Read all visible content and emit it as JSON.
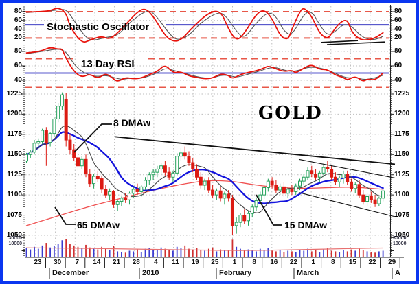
{
  "window": {
    "border_color": "#0a36f0",
    "background": "#ffffff"
  },
  "panels": {
    "stochastic": {
      "title": "Stochastic Oscillator",
      "yticks": [
        "80",
        "60",
        "40",
        "20"
      ],
      "upper_band": 80,
      "lower_band": 20,
      "midline": 50
    },
    "rsi": {
      "title": "13 Day RSI",
      "yticks": [
        "80",
        "60",
        "40"
      ],
      "upper_band": 70,
      "lower_band": 30,
      "midline": 50
    },
    "price": {
      "title": "GOLD",
      "yticks": [
        "1225",
        "1200",
        "1175",
        "1150",
        "1125",
        "1100",
        "1075",
        "1050"
      ],
      "annotations": [
        {
          "label": "8 DMAw"
        },
        {
          "label": "65 DMAw"
        },
        {
          "label": "15 DMAw"
        }
      ]
    },
    "volume": {
      "yticks": [
        "30000",
        "10000"
      ]
    }
  },
  "xaxis": {
    "dates": [
      "23",
      "30",
      "7",
      "14",
      "21",
      "28",
      "4",
      "11",
      "19",
      "25",
      "1",
      "8",
      "16",
      "22",
      "1",
      "8",
      "15",
      "22",
      "29"
    ],
    "months": [
      "December",
      "2010",
      "February",
      "March",
      "A"
    ]
  },
  "colors": {
    "band_dashed": "#e85748",
    "midline_blue": "#2222bb",
    "osc_fast": "#e8130c",
    "osc_slow": "#555555",
    "candle_up": "#23a05a",
    "candle_down": "#dc1a12",
    "ma8": "#444444",
    "ma15": "#1414dd",
    "ma65": "#f05050",
    "vol_up": "#3a3ad0",
    "vol_down": "#d03030",
    "vol_ma": "#e87070",
    "grid": "#bcbcbc",
    "axis": "#222222",
    "trend": "#111111"
  },
  "chart_data": {
    "type": "candlestick+oscillators",
    "price_ylim": [
      1040,
      1233
    ],
    "osc_ylim": [
      0,
      100
    ],
    "volume_ylim": [
      0,
      32000
    ],
    "candles": [
      [
        1142,
        1152,
        1140,
        1150
      ],
      [
        1150,
        1156,
        1146,
        1153
      ],
      [
        1153,
        1168,
        1151,
        1164
      ],
      [
        1164,
        1170,
        1158,
        1166
      ],
      [
        1166,
        1182,
        1163,
        1180
      ],
      [
        1180,
        1184,
        1136,
        1165
      ],
      [
        1165,
        1178,
        1160,
        1176
      ],
      [
        1176,
        1196,
        1172,
        1194
      ],
      [
        1194,
        1214,
        1190,
        1210
      ],
      [
        1210,
        1227,
        1205,
        1224
      ],
      [
        1218,
        1226,
        1160,
        1168
      ],
      [
        1168,
        1176,
        1150,
        1156
      ],
      [
        1156,
        1163,
        1142,
        1146
      ],
      [
        1146,
        1152,
        1130,
        1136
      ],
      [
        1136,
        1148,
        1132,
        1144
      ],
      [
        1144,
        1150,
        1122,
        1126
      ],
      [
        1126,
        1132,
        1110,
        1114
      ],
      [
        1114,
        1126,
        1108,
        1123
      ],
      [
        1123,
        1130,
        1116,
        1120
      ],
      [
        1120,
        1124,
        1102,
        1107
      ],
      [
        1107,
        1112,
        1096,
        1100
      ],
      [
        1100,
        1108,
        1094,
        1104
      ],
      [
        1104,
        1106,
        1084,
        1088
      ],
      [
        1088,
        1094,
        1080,
        1092
      ],
      [
        1092,
        1098,
        1086,
        1096
      ],
      [
        1096,
        1102,
        1090,
        1094
      ],
      [
        1094,
        1104,
        1088,
        1102
      ],
      [
        1102,
        1110,
        1096,
        1107
      ],
      [
        1107,
        1114,
        1100,
        1104
      ],
      [
        1104,
        1112,
        1098,
        1110
      ],
      [
        1110,
        1122,
        1106,
        1118
      ],
      [
        1118,
        1128,
        1112,
        1125
      ],
      [
        1125,
        1132,
        1118,
        1128
      ],
      [
        1128,
        1136,
        1122,
        1132
      ],
      [
        1132,
        1140,
        1126,
        1136
      ],
      [
        1136,
        1142,
        1124,
        1128
      ],
      [
        1128,
        1134,
        1118,
        1122
      ],
      [
        1122,
        1130,
        1116,
        1127
      ],
      [
        1127,
        1152,
        1124,
        1148
      ],
      [
        1148,
        1158,
        1142,
        1152
      ],
      [
        1152,
        1160,
        1144,
        1148
      ],
      [
        1148,
        1154,
        1136,
        1140
      ],
      [
        1140,
        1146,
        1128,
        1132
      ],
      [
        1132,
        1138,
        1118,
        1122
      ],
      [
        1122,
        1128,
        1108,
        1112
      ],
      [
        1112,
        1120,
        1106,
        1117
      ],
      [
        1117,
        1122,
        1102,
        1106
      ],
      [
        1106,
        1112,
        1096,
        1100
      ],
      [
        1100,
        1108,
        1094,
        1105
      ],
      [
        1105,
        1110,
        1092,
        1096
      ],
      [
        1096,
        1104,
        1088,
        1101
      ],
      [
        1101,
        1106,
        1092,
        1096
      ],
      [
        1096,
        1100,
        1050,
        1062
      ],
      [
        1062,
        1072,
        1052,
        1066
      ],
      [
        1066,
        1078,
        1060,
        1075
      ],
      [
        1075,
        1082,
        1064,
        1068
      ],
      [
        1068,
        1080,
        1062,
        1077
      ],
      [
        1077,
        1088,
        1072,
        1085
      ],
      [
        1085,
        1096,
        1080,
        1093
      ],
      [
        1093,
        1104,
        1088,
        1100
      ],
      [
        1100,
        1112,
        1095,
        1109
      ],
      [
        1109,
        1120,
        1104,
        1117
      ],
      [
        1117,
        1122,
        1108,
        1112
      ],
      [
        1112,
        1118,
        1102,
        1106
      ],
      [
        1106,
        1114,
        1100,
        1110
      ],
      [
        1110,
        1116,
        1098,
        1102
      ],
      [
        1102,
        1110,
        1096,
        1107
      ],
      [
        1107,
        1112,
        1100,
        1104
      ],
      [
        1104,
        1114,
        1100,
        1111
      ],
      [
        1111,
        1120,
        1106,
        1117
      ],
      [
        1117,
        1126,
        1112,
        1122
      ],
      [
        1122,
        1134,
        1118,
        1130
      ],
      [
        1130,
        1136,
        1122,
        1126
      ],
      [
        1126,
        1132,
        1118,
        1122
      ],
      [
        1122,
        1130,
        1116,
        1127
      ],
      [
        1127,
        1138,
        1122,
        1134
      ],
      [
        1134,
        1142,
        1128,
        1132
      ],
      [
        1132,
        1136,
        1118,
        1122
      ],
      [
        1122,
        1128,
        1112,
        1116
      ],
      [
        1116,
        1124,
        1110,
        1121
      ],
      [
        1121,
        1130,
        1114,
        1126
      ],
      [
        1126,
        1130,
        1112,
        1116
      ],
      [
        1116,
        1120,
        1104,
        1108
      ],
      [
        1108,
        1116,
        1102,
        1113
      ],
      [
        1113,
        1118,
        1096,
        1100
      ],
      [
        1100,
        1106,
        1088,
        1092
      ],
      [
        1092,
        1102,
        1086,
        1098
      ],
      [
        1098,
        1104,
        1090,
        1094
      ],
      [
        1094,
        1100,
        1085,
        1089
      ],
      [
        1089,
        1098,
        1086,
        1096
      ],
      [
        1096,
        1107,
        1092,
        1105
      ]
    ],
    "volume": [
      14000,
      12000,
      16000,
      13000,
      18000,
      22000,
      15000,
      17000,
      20000,
      26000,
      28000,
      21000,
      18000,
      16000,
      14000,
      19000,
      15000,
      13000,
      12000,
      16000,
      14000,
      11000,
      17000,
      9000,
      8000,
      7000,
      10000,
      9000,
      12000,
      8000,
      13000,
      14000,
      12000,
      11000,
      15000,
      13000,
      12000,
      10000,
      16000,
      14000,
      18000,
      13000,
      12000,
      14000,
      11000,
      10000,
      13000,
      15000,
      9000,
      12000,
      10000,
      11000,
      27000,
      16000,
      13000,
      11000,
      12000,
      10000,
      9000,
      13000,
      11000,
      14000,
      10000,
      9000,
      11000,
      8000,
      10000,
      9000,
      8000,
      12000,
      10000,
      13000,
      9000,
      11000,
      8000,
      12000,
      14000,
      10000,
      9000,
      8000,
      11000,
      9000,
      12000,
      10000,
      13000,
      11000,
      9000,
      8000,
      7000,
      9000,
      10000
    ],
    "stoch_k": [
      [
        0,
        79
      ],
      [
        3,
        80
      ],
      [
        6,
        82
      ],
      [
        8,
        90
      ],
      [
        10,
        78
      ],
      [
        11,
        45
      ],
      [
        14,
        8
      ],
      [
        16,
        15
      ],
      [
        19,
        25
      ],
      [
        21,
        16
      ],
      [
        24,
        40
      ],
      [
        28,
        80
      ],
      [
        30,
        88
      ],
      [
        32,
        70
      ],
      [
        35,
        25
      ],
      [
        37,
        12
      ],
      [
        39,
        15
      ],
      [
        42,
        45
      ],
      [
        46,
        78
      ],
      [
        49,
        83
      ],
      [
        51,
        40
      ],
      [
        53,
        13
      ],
      [
        55,
        30
      ],
      [
        58,
        75
      ],
      [
        60,
        85
      ],
      [
        62,
        65
      ],
      [
        64,
        25
      ],
      [
        66,
        15
      ],
      [
        67,
        40
      ],
      [
        69,
        80
      ],
      [
        70,
        90
      ],
      [
        72,
        70
      ],
      [
        74,
        30
      ],
      [
        76,
        18
      ],
      [
        77,
        30
      ],
      [
        79,
        55
      ],
      [
        81,
        63
      ],
      [
        82,
        35
      ],
      [
        84,
        17
      ],
      [
        86,
        15
      ],
      [
        88,
        20
      ],
      [
        90,
        32
      ]
    ],
    "stoch_d": [
      [
        0,
        78
      ],
      [
        4,
        80
      ],
      [
        8,
        84
      ],
      [
        10,
        86
      ],
      [
        12,
        60
      ],
      [
        15,
        20
      ],
      [
        17,
        14
      ],
      [
        20,
        22
      ],
      [
        23,
        25
      ],
      [
        26,
        55
      ],
      [
        30,
        82
      ],
      [
        32,
        80
      ],
      [
        36,
        30
      ],
      [
        38,
        14
      ],
      [
        41,
        25
      ],
      [
        44,
        55
      ],
      [
        48,
        78
      ],
      [
        50,
        75
      ],
      [
        53,
        35
      ],
      [
        55,
        18
      ],
      [
        58,
        55
      ],
      [
        61,
        80
      ],
      [
        63,
        70
      ],
      [
        65,
        35
      ],
      [
        67,
        25
      ],
      [
        70,
        75
      ],
      [
        72,
        82
      ],
      [
        74,
        50
      ],
      [
        76,
        25
      ],
      [
        78,
        35
      ],
      [
        80,
        52
      ],
      [
        82,
        48
      ],
      [
        84,
        28
      ],
      [
        86,
        17
      ],
      [
        88,
        16
      ],
      [
        90,
        24
      ]
    ],
    "rsi": [
      [
        0,
        78
      ],
      [
        2,
        79
      ],
      [
        4,
        81
      ],
      [
        6,
        86
      ],
      [
        8,
        83
      ],
      [
        9,
        84
      ],
      [
        10,
        70
      ],
      [
        12,
        52
      ],
      [
        14,
        44
      ],
      [
        16,
        49
      ],
      [
        18,
        42
      ],
      [
        20,
        50
      ],
      [
        22,
        42
      ],
      [
        23,
        38
      ],
      [
        25,
        44
      ],
      [
        27,
        42
      ],
      [
        29,
        43
      ],
      [
        31,
        48
      ],
      [
        33,
        52
      ],
      [
        35,
        62
      ],
      [
        37,
        50
      ],
      [
        39,
        52
      ],
      [
        41,
        46
      ],
      [
        43,
        44
      ],
      [
        45,
        42
      ],
      [
        47,
        43
      ],
      [
        49,
        49
      ],
      [
        51,
        47
      ],
      [
        52,
        42
      ],
      [
        54,
        48
      ],
      [
        56,
        51
      ],
      [
        58,
        53
      ],
      [
        60,
        57
      ],
      [
        61,
        60
      ],
      [
        63,
        56
      ],
      [
        65,
        52
      ],
      [
        67,
        54
      ],
      [
        68,
        50
      ],
      [
        70,
        57
      ],
      [
        72,
        62
      ],
      [
        74,
        55
      ],
      [
        76,
        55
      ],
      [
        78,
        47
      ],
      [
        80,
        44
      ],
      [
        81,
        40
      ],
      [
        83,
        46
      ],
      [
        85,
        38
      ],
      [
        86,
        42
      ],
      [
        88,
        40
      ],
      [
        90,
        50
      ]
    ],
    "rsi_signal": [
      [
        0,
        77
      ],
      [
        4,
        80
      ],
      [
        8,
        84
      ],
      [
        10,
        80
      ],
      [
        12,
        62
      ],
      [
        14,
        52
      ],
      [
        16,
        47
      ],
      [
        18,
        45
      ],
      [
        20,
        47
      ],
      [
        22,
        44
      ],
      [
        24,
        41
      ],
      [
        26,
        43
      ],
      [
        28,
        42
      ],
      [
        30,
        44
      ],
      [
        33,
        50
      ],
      [
        35,
        57
      ],
      [
        37,
        54
      ],
      [
        39,
        51
      ],
      [
        41,
        48
      ],
      [
        43,
        45
      ],
      [
        45,
        43
      ],
      [
        47,
        43
      ],
      [
        49,
        47
      ],
      [
        51,
        47
      ],
      [
        53,
        44
      ],
      [
        55,
        47
      ],
      [
        57,
        50
      ],
      [
        59,
        53
      ],
      [
        61,
        57
      ],
      [
        63,
        58
      ],
      [
        65,
        54
      ],
      [
        67,
        52
      ],
      [
        69,
        54
      ],
      [
        71,
        58
      ],
      [
        73,
        58
      ],
      [
        75,
        56
      ],
      [
        77,
        52
      ],
      [
        79,
        47
      ],
      [
        81,
        43
      ],
      [
        83,
        44
      ],
      [
        85,
        41
      ],
      [
        87,
        42
      ],
      [
        89,
        45
      ],
      [
        90,
        47
      ]
    ],
    "ma65": [
      [
        0,
        1062
      ],
      [
        8,
        1074
      ],
      [
        16,
        1086
      ],
      [
        24,
        1096
      ],
      [
        32,
        1106
      ],
      [
        40,
        1114
      ],
      [
        46,
        1118
      ],
      [
        52,
        1117
      ],
      [
        58,
        1112
      ],
      [
        64,
        1109
      ],
      [
        70,
        1108
      ],
      [
        76,
        1109
      ],
      [
        82,
        1110
      ],
      [
        90,
        1107
      ]
    ],
    "vol_ma": [
      [
        0,
        14500
      ],
      [
        10,
        14000
      ],
      [
        20,
        13200
      ],
      [
        30,
        12200
      ],
      [
        40,
        11400
      ],
      [
        48,
        10600
      ],
      [
        55,
        10300
      ],
      [
        62,
        10800
      ],
      [
        70,
        11800
      ],
      [
        78,
        12800
      ],
      [
        84,
        13600
      ],
      [
        90,
        14200
      ]
    ],
    "trendlines": {
      "price": [
        [
          [
            168,
            1172
          ],
          [
            575,
            1138
          ]
        ],
        [
          [
            435,
            1144
          ],
          [
            575,
            1121
          ]
        ],
        [
          [
            435,
            1103
          ],
          [
            575,
            1073
          ]
        ]
      ],
      "stoch": [
        [
          [
            468,
            10
          ],
          [
            521,
            14
          ]
        ],
        [
          [
            476,
            5
          ],
          [
            560,
            11
          ]
        ]
      ]
    }
  }
}
